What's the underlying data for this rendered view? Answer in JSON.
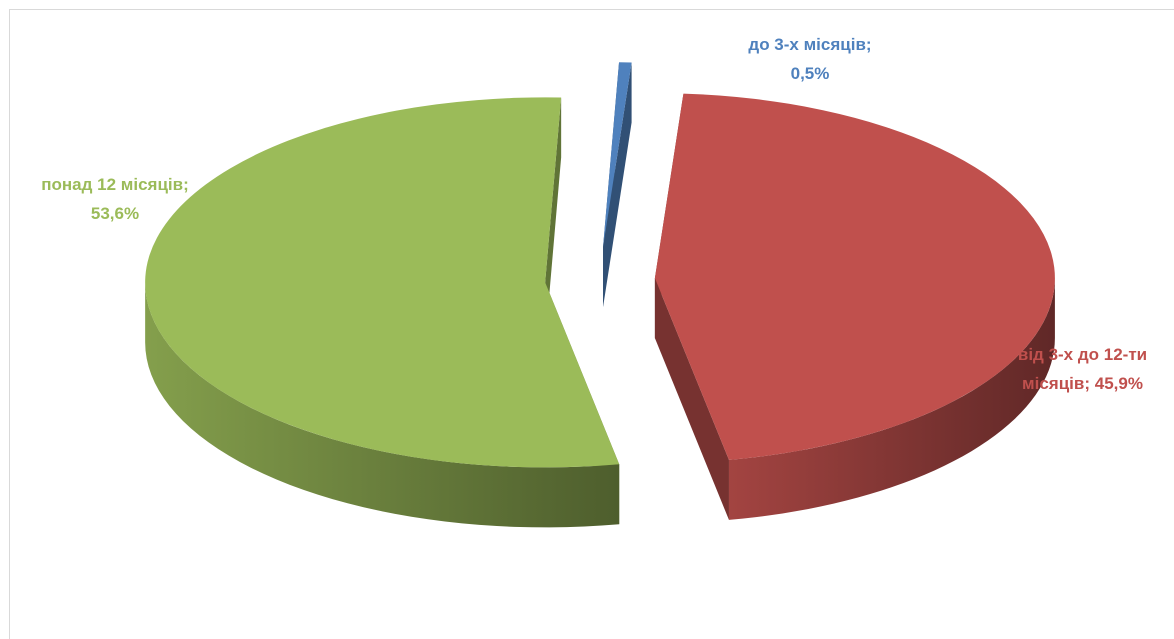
{
  "chart_data": {
    "type": "pie",
    "style": "3d-exploded",
    "categories": [
      "до 3-х місяців",
      "від 3-х до 12-ти місяців",
      "понад 12 місяців"
    ],
    "values": [
      0.5,
      45.9,
      53.6
    ],
    "value_labels": [
      "0,5%",
      "45,9%",
      "53,6%"
    ],
    "label_separator": ";",
    "colors": [
      "#4f81bd",
      "#c0504d",
      "#9bbb59"
    ]
  }
}
